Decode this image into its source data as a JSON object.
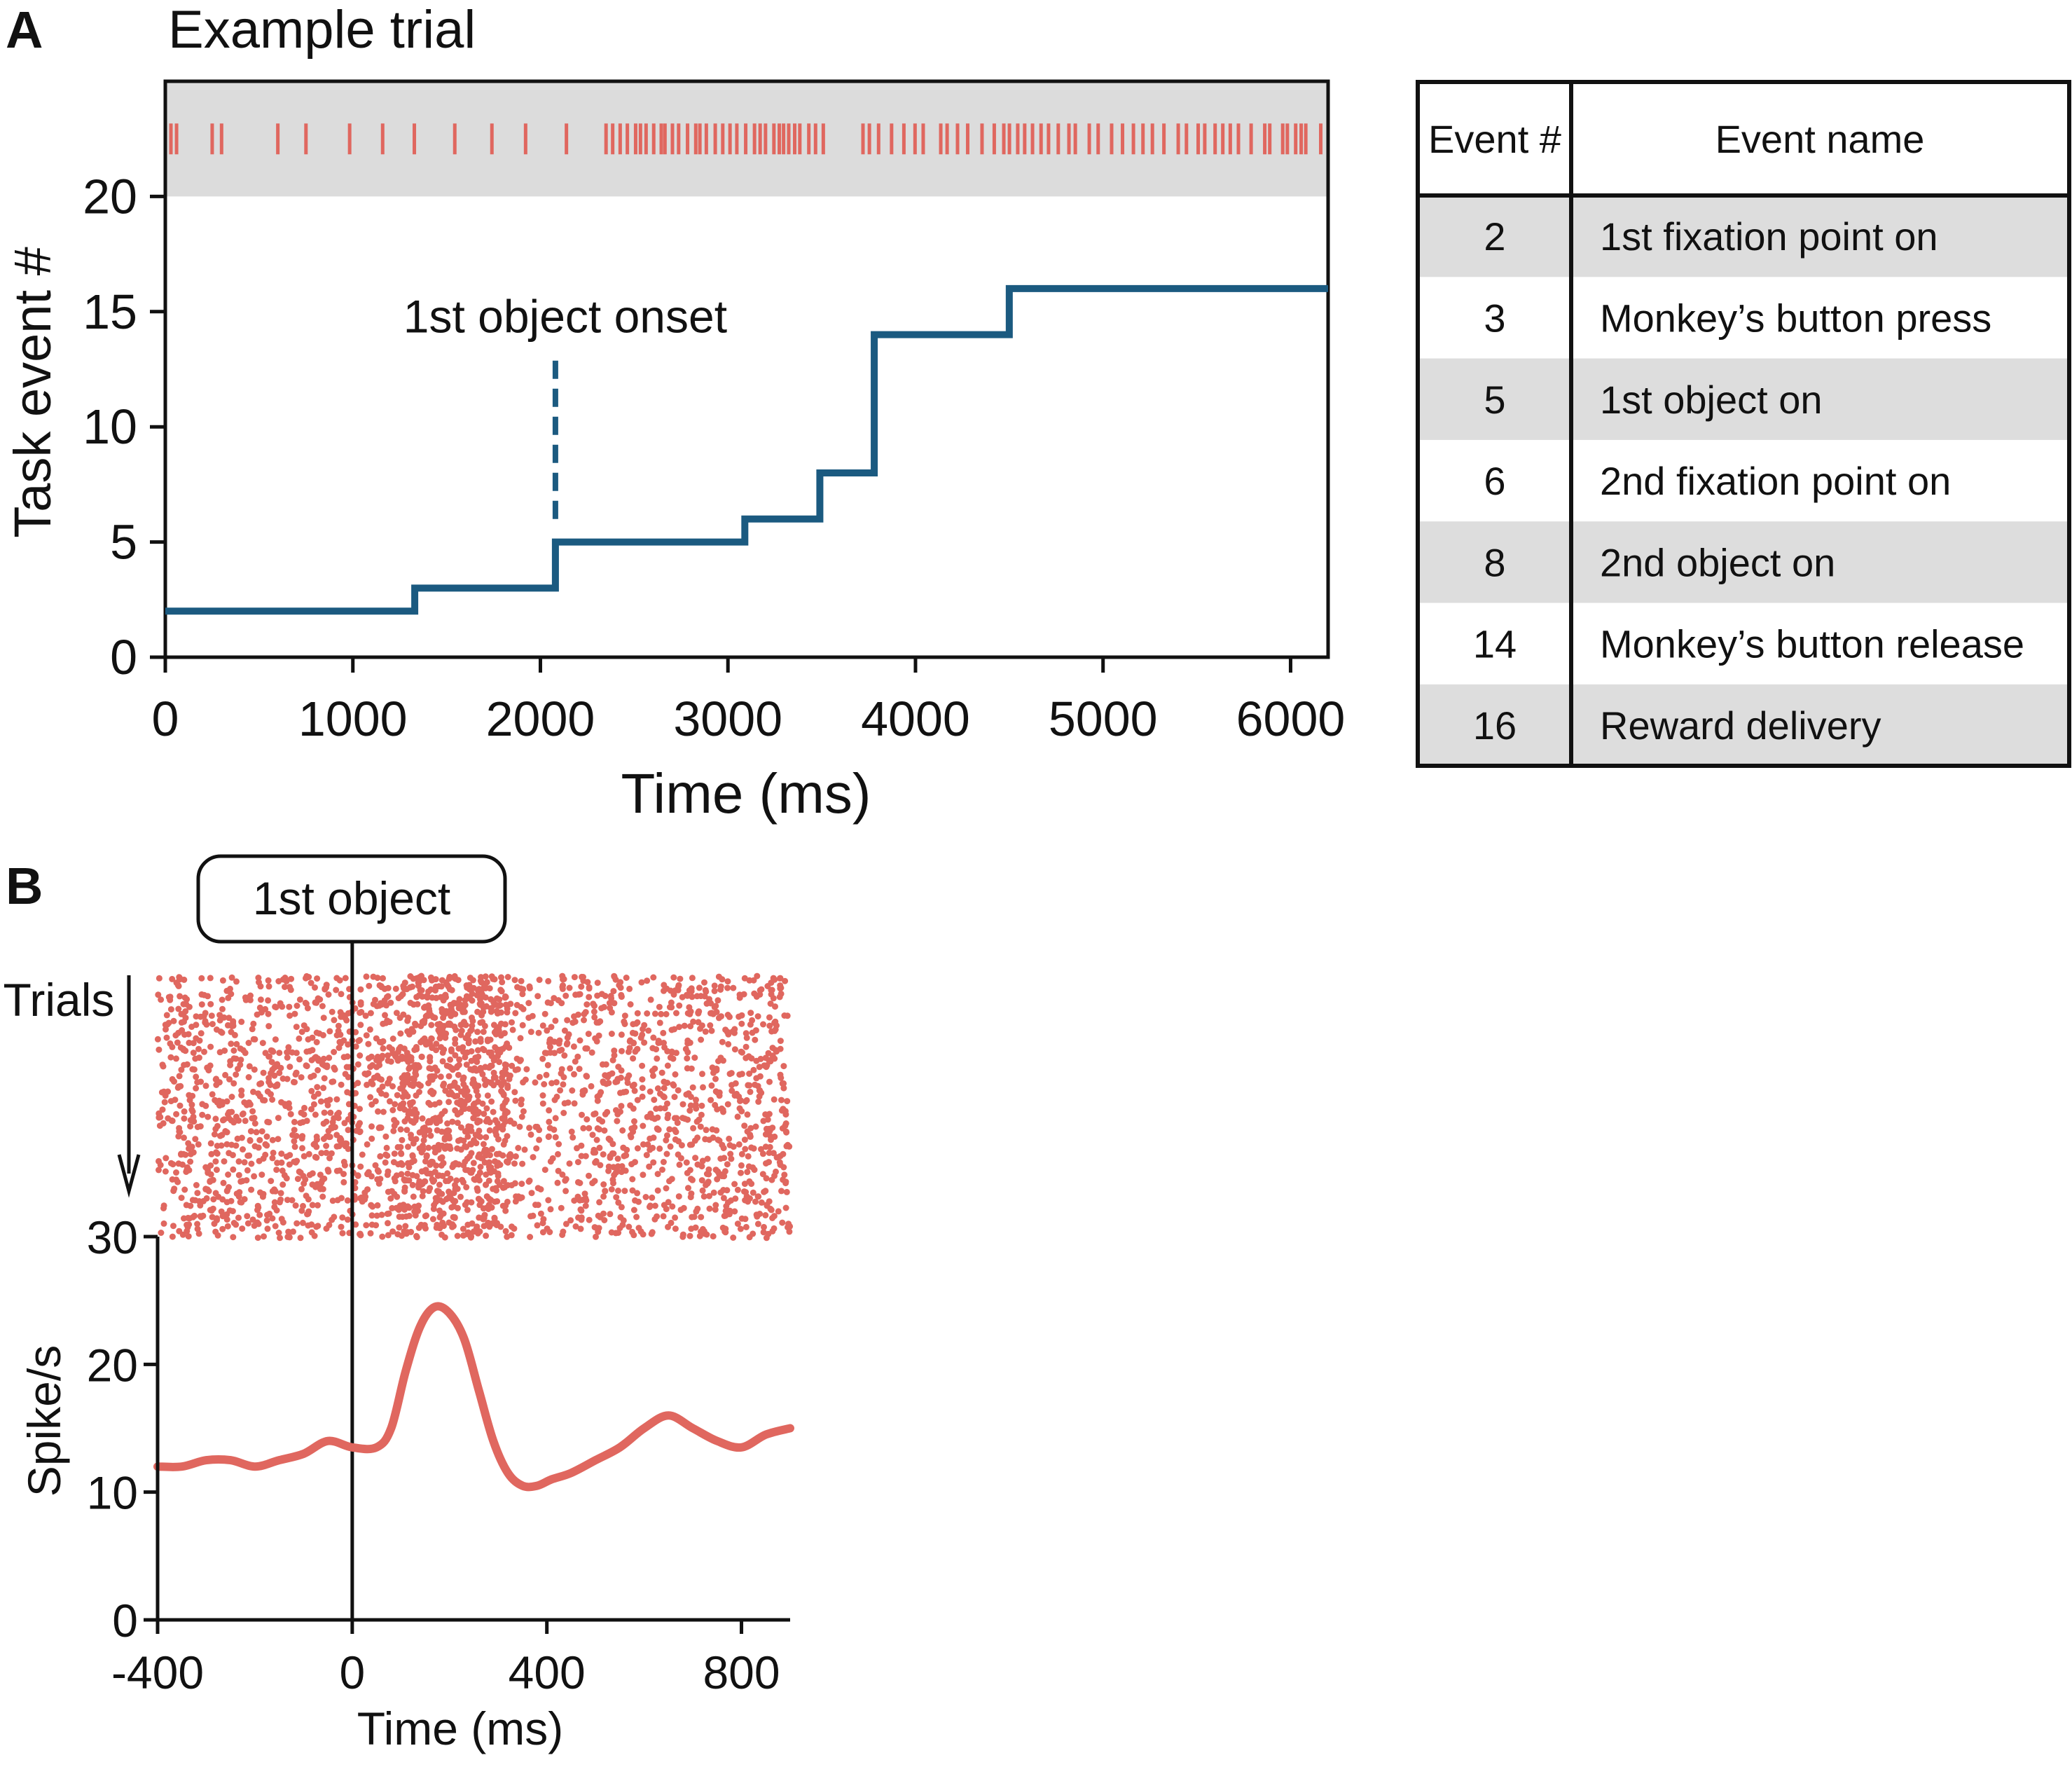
{
  "panels": {
    "a_letter": "A",
    "b_letter": "B"
  },
  "colors": {
    "step_line": "#1b5a80",
    "spikes": "#e0675f",
    "shade": "#dcdcdc",
    "table_shade": "#dddddd"
  },
  "chart_data": [
    {
      "type": "line",
      "title": "Example trial",
      "xlabel": "Time (ms)",
      "ylabel": "Task event #",
      "xlim": [
        0,
        6200
      ],
      "ylim": [
        0,
        25
      ],
      "xticks": [
        "0",
        "1000",
        "2000",
        "3000",
        "4000",
        "5000",
        "6000"
      ],
      "yticks": [
        "0",
        "5",
        "10",
        "15",
        "20"
      ],
      "step": "post",
      "x": [
        0,
        1330,
        2080,
        3090,
        3490,
        3780,
        4500,
        6200
      ],
      "y": [
        2,
        3,
        5,
        6,
        8,
        14,
        16,
        16
      ],
      "annotation": {
        "label": "1st object onset",
        "x": 2080,
        "y_from": 6,
        "y_to": 13
      },
      "spike_band": {
        "ylim": [
          20,
          25
        ],
        "row_y": 22.5
      }
    },
    {
      "type": "table",
      "columns": [
        "Event #",
        "Event name"
      ],
      "rows": [
        [
          "2",
          "1st fixation point on"
        ],
        [
          "3",
          "Monkey’s button press"
        ],
        [
          "5",
          "1st object on"
        ],
        [
          "6",
          "2nd fixation point on"
        ],
        [
          "8",
          "2nd object on"
        ],
        [
          "14",
          "Monkey’s button release"
        ],
        [
          "16",
          "Reward delivery"
        ]
      ]
    },
    {
      "type": "scatter",
      "label": "Trials",
      "event_label": "1st object",
      "xlim": [
        -400,
        900
      ],
      "trials": 30
    },
    {
      "type": "line",
      "xlabel": "Time (ms)",
      "ylabel": "Spike/s",
      "xlim": [
        -400,
        900
      ],
      "ylim": [
        0,
        30
      ],
      "xticks": [
        "-400",
        "0",
        "400",
        "800"
      ],
      "yticks": [
        "0",
        "10",
        "20",
        "30"
      ],
      "x": [
        -400,
        -350,
        -300,
        -250,
        -200,
        -150,
        -100,
        -50,
        0,
        50,
        80,
        110,
        140,
        170,
        200,
        230,
        260,
        290,
        320,
        350,
        380,
        410,
        450,
        500,
        550,
        600,
        650,
        700,
        750,
        800,
        850,
        900
      ],
      "y": [
        12,
        12,
        12.5,
        12.5,
        12,
        12.5,
        13,
        14,
        13.5,
        13.5,
        15,
        19.5,
        23,
        24.5,
        24,
        22,
        18,
        14,
        11.5,
        10.5,
        10.5,
        11,
        11.5,
        12.5,
        13.5,
        15,
        16,
        15,
        14,
        13.5,
        14.5,
        15
      ]
    }
  ]
}
